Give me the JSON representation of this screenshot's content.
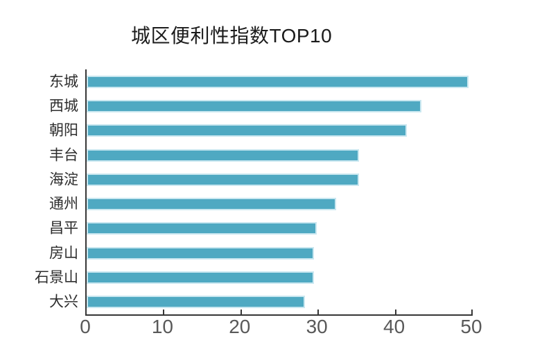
{
  "title": "城区便利性指数TOP10",
  "colors": {
    "bar_fill": "#4fa9c2",
    "bar_border": "#c9e7f0",
    "axis_line": "#363636",
    "x_tick_label": "#595959",
    "y_label": "#2d2d2d",
    "title_text": "#1b1b1b",
    "background": "#ffffff"
  },
  "chart_data": {
    "type": "bar",
    "orientation": "horizontal",
    "title": "城区便利性指数TOP10",
    "categories": [
      "东城",
      "西城",
      "朝阳",
      "丰台",
      "海淀",
      "通州",
      "昌平",
      "房山",
      "石景山",
      "大兴"
    ],
    "values": [
      49.5,
      43.4,
      41.5,
      35.3,
      35.3,
      32.3,
      29.8,
      29.4,
      29.4,
      28.3
    ],
    "xlabel": "",
    "ylabel": "",
    "xlim": [
      0,
      50
    ],
    "xticks": [
      0,
      10,
      20,
      30,
      40,
      50
    ],
    "grid": false,
    "legend": null,
    "bars_sorted": "descending"
  }
}
